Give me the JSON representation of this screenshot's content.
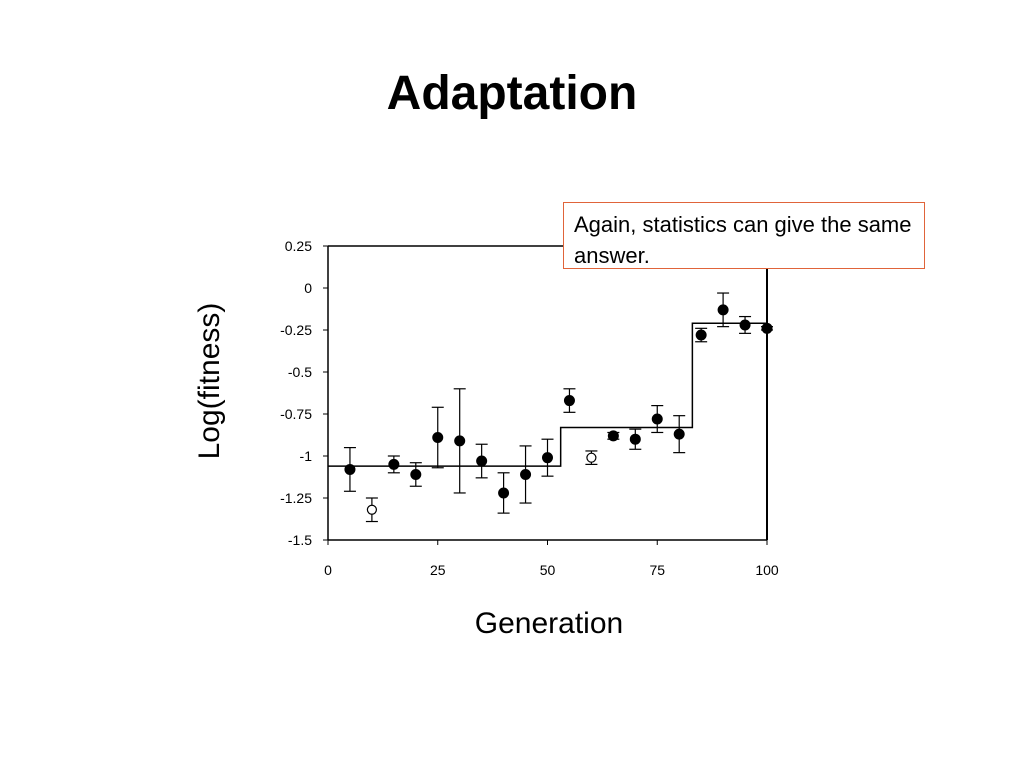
{
  "slide": {
    "title": "Adaptation"
  },
  "callout": {
    "text": "Again, statistics can give the same answer."
  },
  "chart_data": {
    "type": "scatter",
    "xlabel": "Generation",
    "ylabel": "Log(fitness)",
    "xlim": [
      0,
      100
    ],
    "ylim": [
      -1.5,
      0.25
    ],
    "xticks": [
      0,
      25,
      50,
      75,
      100
    ],
    "xtick_labels": [
      "0",
      "25",
      "50",
      "75",
      "100"
    ],
    "yticks": [
      0.25,
      0,
      -0.25,
      -0.5,
      -0.75,
      -1,
      -1.25,
      -1.5
    ],
    "ytick_labels": [
      "0.25",
      "0",
      "-0.25",
      "-0.5",
      "-0.75",
      "-1",
      "-1.25",
      "-1.5"
    ],
    "grid": false,
    "series": [
      {
        "marker": "filled",
        "points": [
          {
            "x": 5,
            "y": -1.08,
            "err": 0.13
          },
          {
            "x": 15,
            "y": -1.05,
            "err": 0.05
          },
          {
            "x": 20,
            "y": -1.11,
            "err": 0.07
          },
          {
            "x": 25,
            "y": -0.89,
            "err": 0.18
          },
          {
            "x": 30,
            "y": -0.91,
            "err": 0.31
          },
          {
            "x": 35,
            "y": -1.03,
            "err": 0.1
          },
          {
            "x": 40,
            "y": -1.22,
            "err": 0.12
          },
          {
            "x": 45,
            "y": -1.11,
            "err": 0.17
          },
          {
            "x": 50,
            "y": -1.01,
            "err": 0.11
          },
          {
            "x": 55,
            "y": -0.67,
            "err": 0.07
          },
          {
            "x": 65,
            "y": -0.88,
            "err": 0.02
          },
          {
            "x": 70,
            "y": -0.9,
            "err": 0.06
          },
          {
            "x": 75,
            "y": -0.78,
            "err": 0.08
          },
          {
            "x": 80,
            "y": -0.87,
            "err": 0.11
          },
          {
            "x": 85,
            "y": -0.28,
            "err": 0.04
          },
          {
            "x": 90,
            "y": -0.13,
            "err": 0.1
          },
          {
            "x": 95,
            "y": -0.22,
            "err": 0.05
          },
          {
            "x": 100,
            "y": -0.24,
            "err": 0.01
          }
        ]
      },
      {
        "marker": "open",
        "points": [
          {
            "x": 10,
            "y": -1.32,
            "err": 0.07
          },
          {
            "x": 60,
            "y": -1.01,
            "err": 0.04
          }
        ]
      }
    ],
    "step_line": [
      [
        0,
        -1.06
      ],
      [
        53,
        -1.06
      ],
      [
        53,
        -0.83
      ],
      [
        83,
        -0.83
      ],
      [
        83,
        -0.21
      ],
      [
        100,
        -0.21
      ]
    ]
  }
}
